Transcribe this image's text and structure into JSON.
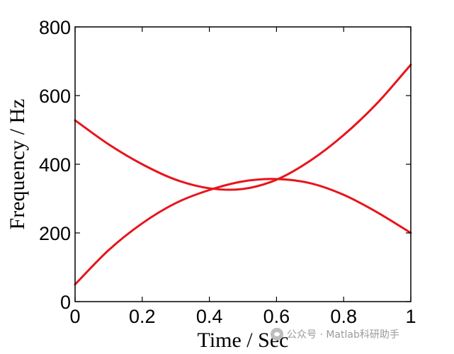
{
  "chart_data": {
    "type": "line",
    "title": "",
    "xlabel": "Time / Sec",
    "ylabel": "Frequency / Hz",
    "xlim": [
      0,
      1
    ],
    "ylim": [
      0,
      800
    ],
    "xticks": [
      0,
      0.2,
      0.4,
      0.6,
      0.8,
      1
    ],
    "xtick_labels": [
      "0",
      "0.2",
      "0.4",
      "0.6",
      "0.8",
      "1"
    ],
    "yticks": [
      0,
      200,
      400,
      600,
      800
    ],
    "ytick_labels": [
      "0",
      "200",
      "400",
      "600",
      "800"
    ],
    "grid": false,
    "legend": "none",
    "line_color": "#e8141b",
    "x": [
      0,
      0.1,
      0.2,
      0.3,
      0.4,
      0.5,
      0.6,
      0.7,
      0.8,
      0.9,
      1
    ],
    "series": [
      {
        "values": [
          528,
          458,
          400,
          355,
          330,
          328,
          355,
          410,
          485,
          578,
          690
        ]
      },
      {
        "values": [
          50,
          150,
          228,
          287,
          325,
          350,
          357,
          345,
          311,
          260,
          200
        ]
      }
    ]
  },
  "watermark": {
    "text": "公众号 · Matlab科研助手"
  }
}
